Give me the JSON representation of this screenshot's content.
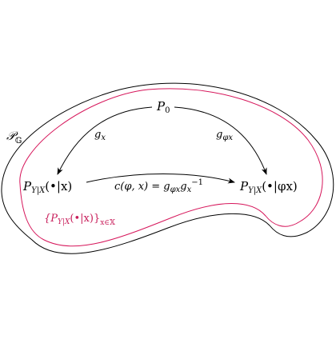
{
  "diagram": {
    "outer_region_label": {
      "main": "𝒫",
      "sub": "𝔾"
    },
    "inner_region_label": {
      "main": "{P",
      "sub": "Y|X",
      "mid": "(•|x)}",
      "sub2": "x∈𝕏"
    },
    "top_node": {
      "main": "P",
      "sub": "0"
    },
    "left_node": {
      "main": "P",
      "sub": "Y|X",
      "rest": "(•|x)"
    },
    "right_node": {
      "main": "P",
      "sub": "Y|X",
      "rest": "(•|φx)"
    },
    "left_arrow_label": {
      "main": "g",
      "sub": "x"
    },
    "right_arrow_label": {
      "main": "g",
      "sub": "φx"
    },
    "bottom_arrow_label": {
      "main": "c(φ, x) = g",
      "sub1": "φx",
      "mid": "g",
      "sub2": "x",
      "sup2": "−1"
    },
    "colors": {
      "outer": "#000000",
      "inner": "#d6155a",
      "inner_label": "#c81d5a"
    }
  }
}
